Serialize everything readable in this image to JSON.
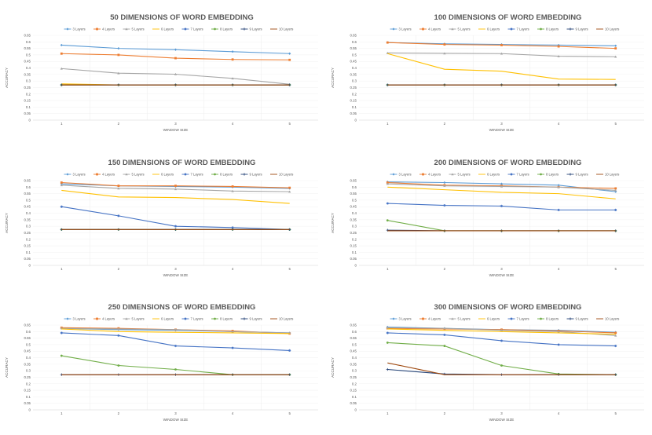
{
  "colors": {
    "3 Layers": "#5b9bd5",
    "4 Layers": "#ed7d31",
    "5 Layers": "#a5a5a5",
    "6 Layers": "#ffc000",
    "7 Layers": "#4472c4",
    "8 Layers": "#70ad47",
    "9 Layers": "#264478",
    "10 Layers": "#9e480e"
  },
  "chart_data": [
    {
      "type": "line",
      "title": "50 DIMENSIONS OF WORD EMBEDDING",
      "xlabel": "WINDOW SIZE",
      "ylabel": "ACCURACY",
      "categories": [
        "1",
        "2",
        "3",
        "4",
        "5"
      ],
      "yticks": [
        "0",
        "0.05",
        "0.1",
        "0.15",
        "0.2",
        "0.25",
        "0.3",
        "0.35",
        "0.4",
        "0.45",
        "0.5",
        "0.55",
        "0.6",
        "0.65"
      ],
      "ylim": [
        0,
        0.65
      ],
      "legend": "top",
      "series": [
        {
          "name": "3 Layers",
          "values": [
            0.575,
            0.55,
            0.54,
            0.525,
            0.51
          ]
        },
        {
          "name": "4 Layers",
          "values": [
            0.51,
            0.5,
            0.475,
            0.465,
            0.462
          ]
        },
        {
          "name": "5 Layers",
          "values": [
            0.395,
            0.36,
            0.352,
            0.32,
            0.275
          ]
        },
        {
          "name": "6 Layers",
          "values": [
            0.278,
            0.27,
            0.27,
            0.27,
            0.27
          ]
        },
        {
          "name": "7 Layers",
          "values": [
            0.27,
            0.27,
            0.27,
            0.27,
            0.27
          ]
        },
        {
          "name": "8 Layers",
          "values": [
            0.27,
            0.27,
            0.27,
            0.27,
            0.27
          ]
        },
        {
          "name": "9 Layers",
          "values": [
            0.27,
            0.27,
            0.27,
            0.27,
            0.27
          ]
        },
        {
          "name": "10 Layers",
          "values": [
            0.27,
            0.27,
            0.27,
            0.27,
            0.27
          ]
        }
      ]
    },
    {
      "type": "line",
      "title": "100 DIMENSIONS OF WORD EMBEDDING",
      "xlabel": "WINDOW SIZE",
      "ylabel": "ACCURACY",
      "categories": [
        "1",
        "2",
        "3",
        "4",
        "5"
      ],
      "yticks": [
        "0",
        "0.05",
        "0.1",
        "0.15",
        "0.2",
        "0.25",
        "0.3",
        "0.35",
        "0.4",
        "0.45",
        "0.5",
        "0.55",
        "0.6",
        "0.65"
      ],
      "ylim": [
        0,
        0.65
      ],
      "legend": "top",
      "series": [
        {
          "name": "3 Layers",
          "values": [
            0.595,
            0.585,
            0.58,
            0.575,
            0.57
          ]
        },
        {
          "name": "4 Layers",
          "values": [
            0.595,
            0.58,
            0.575,
            0.565,
            0.55
          ]
        },
        {
          "name": "5 Layers",
          "values": [
            0.515,
            0.512,
            0.51,
            0.49,
            0.486
          ]
        },
        {
          "name": "6 Layers",
          "values": [
            0.51,
            0.39,
            0.375,
            0.315,
            0.312
          ]
        },
        {
          "name": "7 Layers",
          "values": [
            0.27,
            0.27,
            0.27,
            0.27,
            0.27
          ]
        },
        {
          "name": "8 Layers",
          "values": [
            0.27,
            0.27,
            0.27,
            0.27,
            0.27
          ]
        },
        {
          "name": "9 Layers",
          "values": [
            0.27,
            0.27,
            0.27,
            0.27,
            0.27
          ]
        },
        {
          "name": "10 Layers",
          "values": [
            0.27,
            0.27,
            0.27,
            0.27,
            0.27
          ]
        }
      ]
    },
    {
      "type": "line",
      "title": "150 DIMENSIONS OF WORD EMBEDDING",
      "xlabel": "WINDOW SIZE",
      "ylabel": "ACCURACY",
      "categories": [
        "1",
        "2",
        "3",
        "4",
        "5"
      ],
      "yticks": [
        "0",
        "0.05",
        "0.1",
        "0.15",
        "0.2",
        "0.25",
        "0.3",
        "0.35",
        "0.4",
        "0.45",
        "0.5",
        "0.55",
        "0.6",
        "0.65"
      ],
      "ylim": [
        0,
        0.65
      ],
      "legend": "top",
      "series": [
        {
          "name": "3 Layers",
          "values": [
            0.625,
            0.61,
            0.605,
            0.6,
            0.59
          ]
        },
        {
          "name": "4 Layers",
          "values": [
            0.635,
            0.61,
            0.61,
            0.605,
            0.595
          ]
        },
        {
          "name": "5 Layers",
          "values": [
            0.615,
            0.59,
            0.585,
            0.57,
            0.565
          ]
        },
        {
          "name": "6 Layers",
          "values": [
            0.575,
            0.525,
            0.52,
            0.505,
            0.475
          ]
        },
        {
          "name": "7 Layers",
          "values": [
            0.45,
            0.38,
            0.3,
            0.29,
            0.275
          ]
        },
        {
          "name": "8 Layers",
          "values": [
            0.275,
            0.275,
            0.275,
            0.275,
            0.275
          ]
        },
        {
          "name": "9 Layers",
          "values": [
            0.275,
            0.275,
            0.275,
            0.275,
            0.275
          ]
        },
        {
          "name": "10 Layers",
          "values": [
            0.275,
            0.275,
            0.275,
            0.275,
            0.275
          ]
        }
      ]
    },
    {
      "type": "line",
      "title": "200 DIMENSIONS OF WORD EMBEDDING",
      "xlabel": "WINDOW SIZE",
      "ylabel": "ACCURACY",
      "categories": [
        "1",
        "2",
        "3",
        "4",
        "5"
      ],
      "yticks": [
        "0",
        "0.05",
        "0.1",
        "0.15",
        "0.2",
        "0.25",
        "0.3",
        "0.35",
        "0.4",
        "0.45",
        "0.5",
        "0.55",
        "0.6",
        "0.65"
      ],
      "ylim": [
        0,
        0.65
      ],
      "legend": "top",
      "series": [
        {
          "name": "3 Layers",
          "values": [
            0.64,
            0.635,
            0.625,
            0.615,
            0.565
          ]
        },
        {
          "name": "4 Layers",
          "values": [
            0.635,
            0.615,
            0.61,
            0.6,
            0.59
          ]
        },
        {
          "name": "5 Layers",
          "values": [
            0.625,
            0.61,
            0.605,
            0.6,
            0.575
          ]
        },
        {
          "name": "6 Layers",
          "values": [
            0.6,
            0.58,
            0.56,
            0.55,
            0.51
          ]
        },
        {
          "name": "7 Layers",
          "values": [
            0.475,
            0.46,
            0.455,
            0.425,
            0.425
          ]
        },
        {
          "name": "8 Layers",
          "values": [
            0.345,
            0.265,
            0.265,
            0.265,
            0.265
          ]
        },
        {
          "name": "9 Layers",
          "values": [
            0.27,
            0.265,
            0.265,
            0.265,
            0.265
          ]
        },
        {
          "name": "10 Layers",
          "values": [
            0.265,
            0.265,
            0.265,
            0.265,
            0.265
          ]
        }
      ]
    },
    {
      "type": "line",
      "title": "250 DIMENSIONS OF WORD EMBEDDING",
      "xlabel": "WINDOW SIZE",
      "ylabel": "ACCURACY",
      "categories": [
        "1",
        "2",
        "3",
        "4",
        "5"
      ],
      "yticks": [
        "0",
        "0.05",
        "0.1",
        "0.15",
        "0.2",
        "0.25",
        "0.3",
        "0.35",
        "0.4",
        "0.45",
        "0.5",
        "0.55",
        "0.6",
        "0.65"
      ],
      "ylim": [
        0,
        0.65
      ],
      "legend": "top",
      "series": [
        {
          "name": "3 Layers",
          "values": [
            0.625,
            0.615,
            0.61,
            0.6,
            0.59
          ]
        },
        {
          "name": "4 Layers",
          "values": [
            0.63,
            0.625,
            0.615,
            0.605,
            0.585
          ]
        },
        {
          "name": "5 Layers",
          "values": [
            0.625,
            0.62,
            0.615,
            0.6,
            0.59
          ]
        },
        {
          "name": "6 Layers",
          "values": [
            0.62,
            0.6,
            0.595,
            0.59,
            0.585
          ]
        },
        {
          "name": "7 Layers",
          "values": [
            0.59,
            0.57,
            0.49,
            0.475,
            0.455
          ]
        },
        {
          "name": "8 Layers",
          "values": [
            0.415,
            0.34,
            0.31,
            0.27,
            0.27
          ]
        },
        {
          "name": "9 Layers",
          "values": [
            0.27,
            0.27,
            0.27,
            0.27,
            0.27
          ]
        },
        {
          "name": "10 Layers",
          "values": [
            0.27,
            0.27,
            0.27,
            0.27,
            0.27
          ]
        }
      ]
    },
    {
      "type": "line",
      "title": "300 DIMENSIONS OF WORD EMBEDDING",
      "xlabel": "WINDOW SIZE",
      "ylabel": "ACCURACY",
      "categories": [
        "1",
        "2",
        "3",
        "4",
        "5"
      ],
      "yticks": [
        "0",
        "0.05",
        "0.1",
        "0.15",
        "0.2",
        "0.25",
        "0.3",
        "0.35",
        "0.4",
        "0.45",
        "0.5",
        "0.55",
        "0.6",
        "0.65"
      ],
      "ylim": [
        0,
        0.65
      ],
      "legend": "top",
      "series": [
        {
          "name": "3 Layers",
          "values": [
            0.635,
            0.625,
            0.615,
            0.61,
            0.595
          ]
        },
        {
          "name": "4 Layers",
          "values": [
            0.625,
            0.62,
            0.615,
            0.605,
            0.59
          ]
        },
        {
          "name": "5 Layers",
          "values": [
            0.63,
            0.625,
            0.61,
            0.6,
            0.57
          ]
        },
        {
          "name": "6 Layers",
          "values": [
            0.62,
            0.61,
            0.6,
            0.59,
            0.58
          ]
        },
        {
          "name": "7 Layers",
          "values": [
            0.59,
            0.575,
            0.53,
            0.5,
            0.49
          ]
        },
        {
          "name": "8 Layers",
          "values": [
            0.515,
            0.49,
            0.34,
            0.275,
            0.27
          ]
        },
        {
          "name": "9 Layers",
          "values": [
            0.31,
            0.275,
            0.27,
            0.27,
            0.27
          ]
        },
        {
          "name": "10 Layers",
          "values": [
            0.36,
            0.27,
            0.27,
            0.27,
            0.27
          ]
        }
      ]
    }
  ]
}
